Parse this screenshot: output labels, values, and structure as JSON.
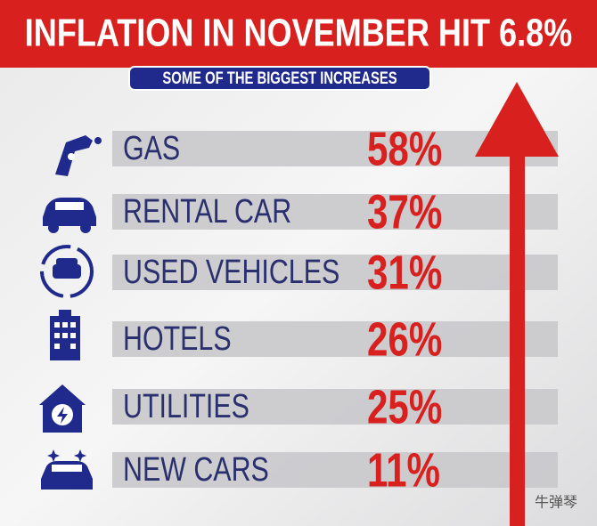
{
  "header": {
    "title": "INFLATION IN NOVEMBER HIT 6.8%",
    "subtitle": "SOME OF THE BIGGEST INCREASES"
  },
  "items": [
    {
      "label": "GAS",
      "value": "58%"
    },
    {
      "label": "RENTAL CAR",
      "value": "37%"
    },
    {
      "label": "USED VEHICLES",
      "value": "31%"
    },
    {
      "label": "HOTELS",
      "value": "26%"
    },
    {
      "label": "UTILITIES",
      "value": "25%"
    },
    {
      "label": "NEW CARS",
      "value": "11%"
    }
  ],
  "watermark": "牛弹琴"
}
